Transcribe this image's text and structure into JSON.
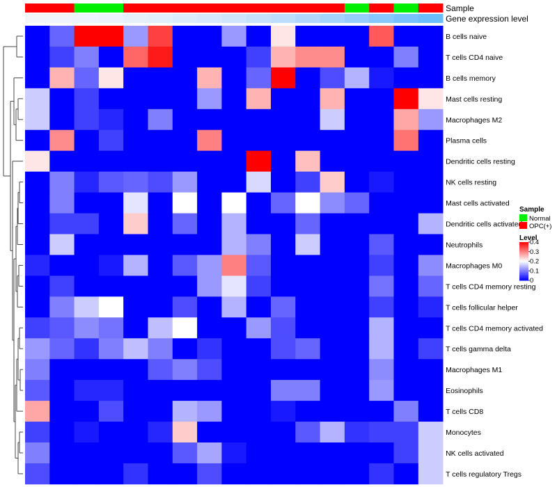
{
  "chart_data": {
    "type": "heatmap",
    "annotations": [
      {
        "label": "Sample",
        "colors": [
          "#FF0000",
          "#FF0000",
          "#00EE00",
          "#00EE00",
          "#FF0000",
          "#FF0000",
          "#FF0000",
          "#FF0000",
          "#FF0000",
          "#FF0000",
          "#FF0000",
          "#FF0000",
          "#FF0000",
          "#00EE00",
          "#FF0000",
          "#00EE00",
          "#FF0000"
        ]
      },
      {
        "label": "Gene expression level",
        "colors": [
          "#F2F6FB",
          "#F0F5FB",
          "#EDF4FB",
          "#EAF2FB",
          "#E6F0FB",
          "#E1EEFB",
          "#DCEBFB",
          "#D6E8FB",
          "#CFE5FC",
          "#C6E1FC",
          "#BCDDFC",
          "#B0D8FC",
          "#A4D3FC",
          "#96CDFC",
          "#86C8FC",
          "#77C2FC",
          "#6ABEFC"
        ]
      }
    ],
    "rows": [
      "B cells naive",
      "T cells CD4 naive",
      "B cells memory",
      "Mast cells resting",
      "Macrophages M2",
      "Plasma cells",
      "Dendritic cells resting",
      "NK cells resting",
      "Mast cells activated",
      "Dendritic cells activated",
      "Neutrophils",
      "Macrophages M0",
      "T cells CD4 memory resting",
      "T cells follicular helper",
      "T cells CD4 memory activated",
      "T cells gamma delta",
      "Macrophages M1",
      "Eosinophils",
      "T cells CD8",
      "Monocytes",
      "NK cells activated",
      "T cells regulatory  Tregs"
    ],
    "values": [
      [
        0,
        0.08,
        0.4,
        0.4,
        0.12,
        0.35,
        0,
        0,
        0.12,
        0,
        0.22,
        0,
        0,
        0,
        0.33,
        0,
        0
      ],
      [
        0,
        0.05,
        0.1,
        0,
        0.32,
        0.38,
        0,
        0,
        0,
        0.05,
        0.26,
        0.29,
        0.29,
        0,
        0,
        0.1,
        0
      ],
      [
        0,
        0.26,
        0.08,
        0.22,
        0,
        0,
        0,
        0.26,
        0,
        0.08,
        0.4,
        0,
        0.06,
        0.14,
        0.02,
        0,
        0
      ],
      [
        0.16,
        0,
        0.05,
        0,
        0,
        0,
        0,
        0.12,
        0,
        0.26,
        0,
        0,
        0.26,
        0,
        0,
        0.4,
        0.22
      ],
      [
        0.16,
        0,
        0.05,
        0.03,
        0,
        0.1,
        0,
        0,
        0,
        0,
        0,
        0,
        0.16,
        0,
        0,
        0.27,
        0.12
      ],
      [
        0,
        0.29,
        0,
        0.05,
        0,
        0,
        0,
        0.3,
        0,
        0,
        0,
        0,
        0,
        0,
        0,
        0.31,
        0
      ],
      [
        0.22,
        0,
        0,
        0,
        0,
        0,
        0,
        0,
        0,
        0.4,
        0,
        0.25,
        0,
        0,
        0,
        0,
        0
      ],
      [
        0,
        0.1,
        0.03,
        0.07,
        0.08,
        0.06,
        0.12,
        0,
        0,
        0.17,
        0,
        0.05,
        0.24,
        0,
        0.02,
        0,
        0
      ],
      [
        0,
        0.1,
        0,
        0,
        0.18,
        0,
        0.2,
        0,
        0.2,
        0,
        0.08,
        0.2,
        0.11,
        0.08,
        0,
        0,
        0
      ],
      [
        0,
        0.05,
        0.05,
        0,
        0.24,
        0,
        0.08,
        0,
        0.14,
        0,
        0,
        0.08,
        0,
        0,
        0,
        0,
        0.14
      ],
      [
        0,
        0.16,
        0,
        0,
        0,
        0,
        0,
        0,
        0.14,
        0.1,
        0,
        0.16,
        0,
        0,
        0.07,
        0,
        0
      ],
      [
        0.03,
        0,
        0,
        0.02,
        0.14,
        0,
        0.07,
        0.12,
        0.3,
        0.07,
        0,
        0,
        0,
        0,
        0.05,
        0,
        0.11
      ],
      [
        0,
        0.05,
        0,
        0,
        0,
        0,
        0,
        0.12,
        0.18,
        0.05,
        0,
        0,
        0,
        0,
        0.09,
        0,
        0.08
      ],
      [
        0,
        0.1,
        0.16,
        0.2,
        0,
        0,
        0.06,
        0,
        0.14,
        0,
        0.08,
        0,
        0,
        0,
        0.05,
        0,
        0.03
      ],
      [
        0.05,
        0.07,
        0.11,
        0.09,
        0,
        0.15,
        0.2,
        0,
        0,
        0.12,
        0.06,
        0,
        0,
        0,
        0.14,
        0,
        0
      ],
      [
        0.12,
        0.08,
        0.04,
        0.1,
        0.15,
        0.1,
        0,
        0.04,
        0,
        0,
        0.06,
        0.08,
        0,
        0,
        0.14,
        0,
        0.05
      ],
      [
        0.1,
        0,
        0,
        0,
        0,
        0.07,
        0.1,
        0.06,
        0,
        0,
        0,
        0,
        0,
        0,
        0.11,
        0,
        0
      ],
      [
        0.07,
        0,
        0.03,
        0.03,
        0,
        0,
        0,
        0,
        0,
        0,
        0.1,
        0.1,
        0,
        0,
        0.12,
        0,
        0
      ],
      [
        0.27,
        0,
        0,
        0.06,
        0,
        0,
        0.14,
        0.12,
        0,
        0,
        0.02,
        0,
        0,
        0,
        0,
        0.1,
        0
      ],
      [
        0.05,
        0,
        0.02,
        0,
        0,
        0.03,
        0.24,
        0,
        0,
        0,
        0,
        0.07,
        0.14,
        0.04,
        0.05,
        0.05,
        0.16
      ],
      [
        0.1,
        0,
        0,
        0,
        0,
        0,
        0.07,
        0.13,
        0.02,
        0,
        0,
        0,
        0,
        0,
        0,
        0.05,
        0.16
      ],
      [
        0.06,
        0,
        0,
        0,
        0.04,
        0,
        0,
        0.06,
        0,
        0,
        0,
        0,
        0,
        0,
        0.04,
        0,
        0.16
      ]
    ],
    "color_scale": {
      "min": 0,
      "max": 0.4,
      "low": "#0000FF",
      "mid": "#FFFFFF",
      "high": "#FF0000"
    },
    "legend": {
      "sample_title": "Sample",
      "sample_items": [
        {
          "label": "Normal",
          "color": "#00EE00"
        },
        {
          "label": "OPC(+)",
          "color": "#FF0000"
        }
      ],
      "level_title": "Level",
      "level_ticks": [
        "0.4",
        "0.3",
        "0.2",
        "0.1",
        "0"
      ]
    }
  }
}
